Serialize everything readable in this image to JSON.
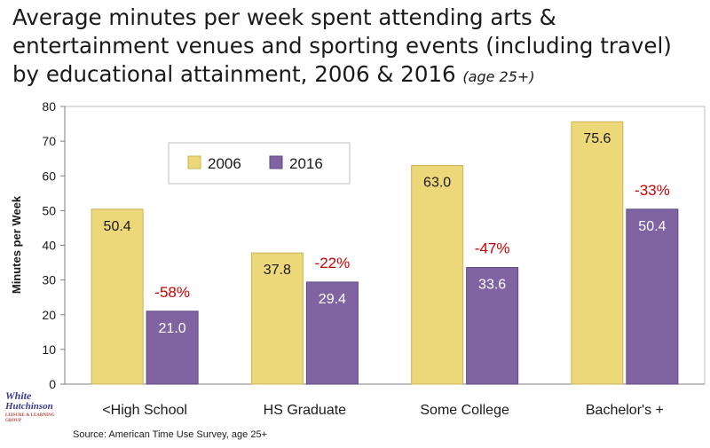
{
  "title": {
    "main": "Average minutes per week spent attending arts & entertainment venues and sporting events (including travel) by educational attainment, 2006 & 2016",
    "sub": "(age 25+)"
  },
  "logo": {
    "line1": "White",
    "line2": "Hutchinson",
    "tagline": "LEISURE & LEARNING GROUP"
  },
  "source": "Source:  American Time Use Survey, age 25+",
  "colors": {
    "s2006": "#ECD878",
    "s2016": "#8064A2",
    "change": "#CC0000"
  },
  "chart_data": {
    "type": "bar",
    "categories": [
      "<High School",
      "HS Graduate",
      "Some College",
      "Bachelor's +"
    ],
    "series": [
      {
        "name": "2006",
        "values": [
          50.4,
          37.8,
          63.0,
          75.6
        ],
        "labels": [
          "50.4",
          "37.8",
          "63.0",
          "75.6"
        ]
      },
      {
        "name": "2016",
        "values": [
          21.0,
          29.4,
          33.6,
          50.4
        ],
        "labels": [
          "21.0",
          "29.4",
          "33.6",
          "50.4"
        ]
      }
    ],
    "annotations": [
      "-58%",
      "-22%",
      "-47%",
      "-33%"
    ],
    "ylabel": "Minutes per Week",
    "xlabel": "",
    "ylim": [
      0,
      80
    ],
    "yticks": [
      "0",
      "10",
      "20",
      "30",
      "40",
      "50",
      "60",
      "70",
      "80"
    ],
    "grid": false,
    "legend_position": "top-left"
  }
}
